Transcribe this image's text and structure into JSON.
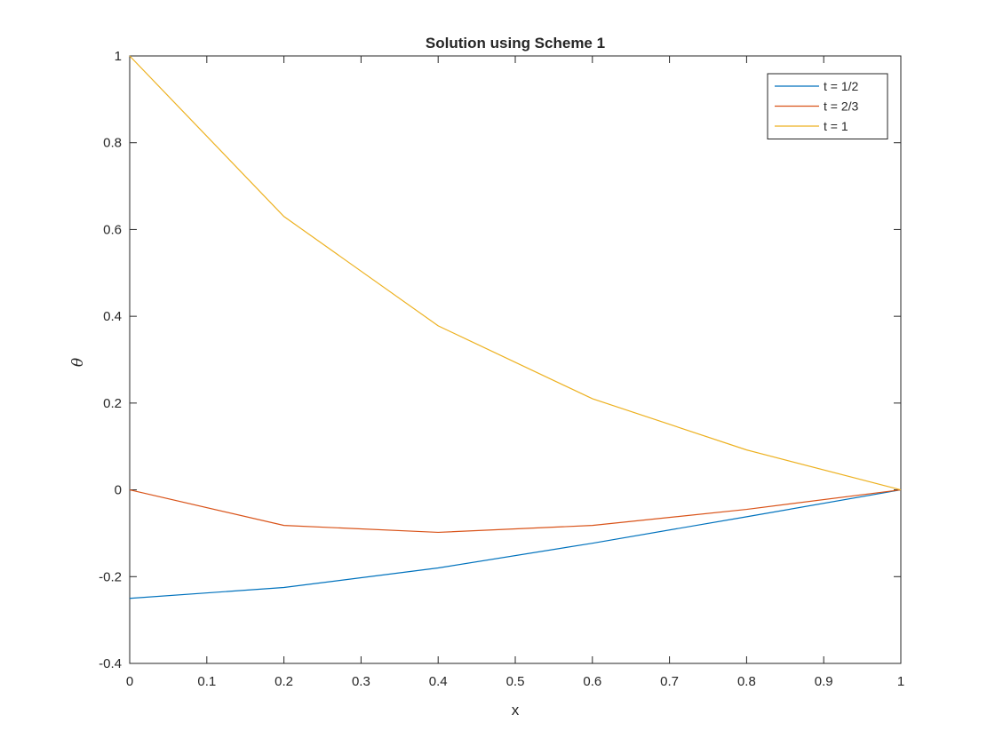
{
  "chart_data": {
    "type": "line",
    "title": "Solution using Scheme 1",
    "xlabel": "x",
    "ylabel": "θ",
    "xlim": [
      0,
      1
    ],
    "ylim": [
      -0.4,
      1
    ],
    "xticks": [
      0,
      0.1,
      0.2,
      0.3,
      0.4,
      0.5,
      0.6,
      0.7,
      0.8,
      0.9,
      1
    ],
    "xtick_labels": [
      "0",
      "0.1",
      "0.2",
      "0.3",
      "0.4",
      "0.5",
      "0.6",
      "0.7",
      "0.8",
      "0.9",
      "1"
    ],
    "yticks": [
      -0.4,
      -0.2,
      0,
      0.2,
      0.4,
      0.6,
      0.8,
      1
    ],
    "ytick_labels": [
      "-0.4",
      "-0.2",
      "0",
      "0.2",
      "0.4",
      "0.6",
      "0.8",
      "1"
    ],
    "grid": false,
    "legend_position": "top-right",
    "x": [
      0,
      0.2,
      0.4,
      0.6,
      0.8,
      1
    ],
    "series": [
      {
        "name": "t = 1/2",
        "color": "#0072BD",
        "values": [
          -0.25,
          -0.225,
          -0.18,
          -0.123,
          -0.062,
          0
        ]
      },
      {
        "name": "t = 2/3",
        "color": "#D95319",
        "values": [
          0,
          -0.082,
          -0.098,
          -0.082,
          -0.045,
          0
        ]
      },
      {
        "name": "t = 1",
        "color": "#EDB120",
        "values": [
          1,
          0.63,
          0.378,
          0.21,
          0.092,
          0
        ]
      }
    ]
  }
}
